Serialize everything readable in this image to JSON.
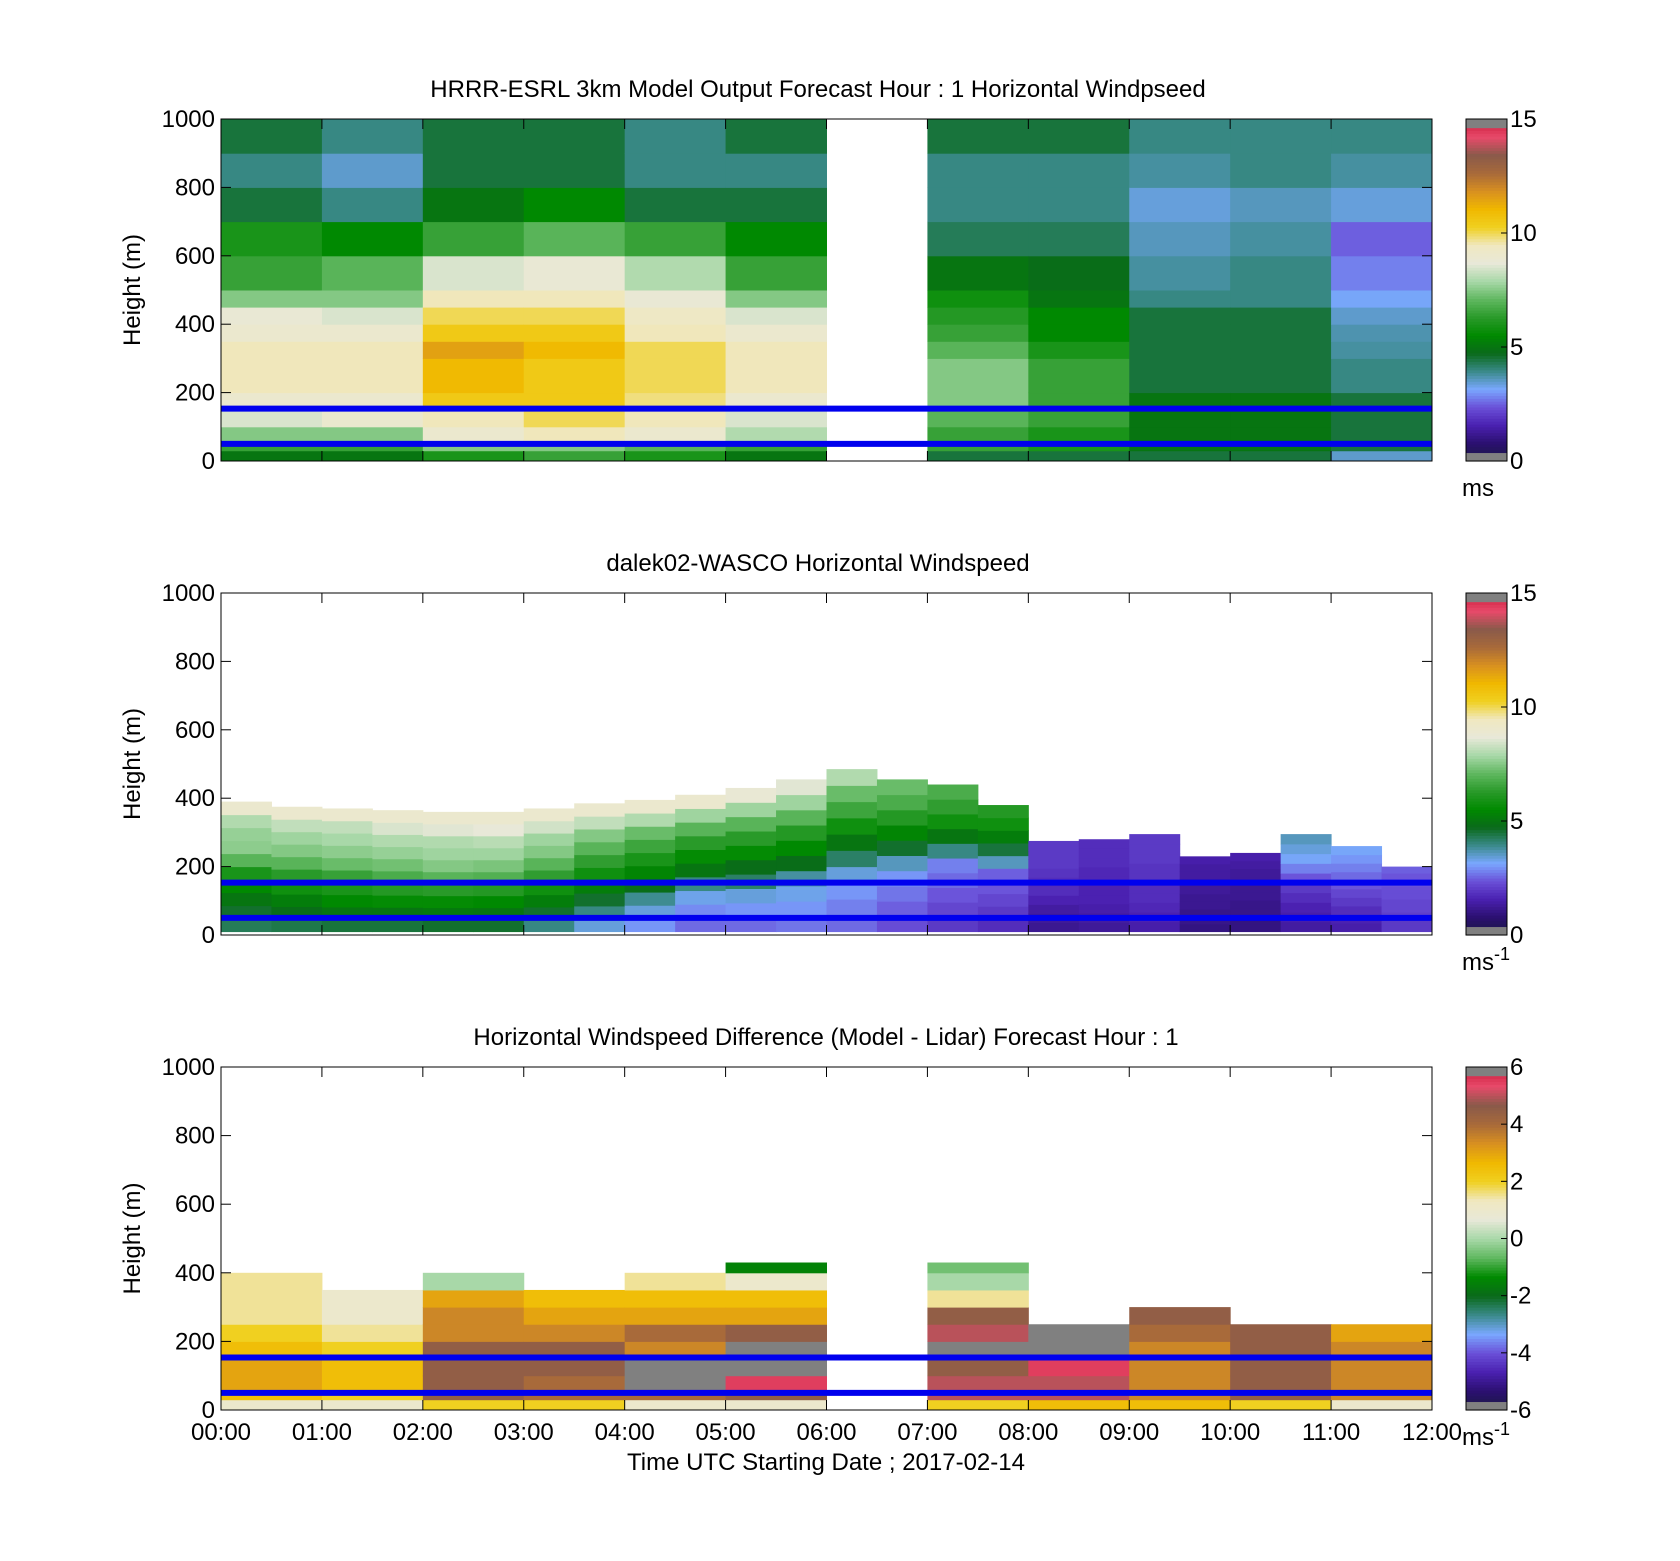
{
  "colors": {
    "speed_scale": [
      "#1a1a40",
      "#2b1070",
      "#4a20b0",
      "#6a50d8",
      "#7aa8ff",
      "#3a8a8a",
      "#0a6a1a",
      "#008a00",
      "#2a9a2a",
      "#60b860",
      "#a8d8a8",
      "#e8e8d8",
      "#f0e8c0",
      "#f0d020",
      "#f0b800",
      "#d89020",
      "#a86a3a",
      "#8a5a4a",
      "#e84a6a",
      "#c81838"
    ],
    "diff_scale": [
      "#1a1a40",
      "#2b1070",
      "#4a20b0",
      "#6a50d8",
      "#7aa8ff",
      "#3a8a8a",
      "#0a6a1a",
      "#008a00",
      "#60b860",
      "#a8d8a8",
      "#e8e8d8",
      "#f0e8c0",
      "#f0d020",
      "#f0b800",
      "#d89020",
      "#a86a3a",
      "#8a5a4a",
      "#e84a6a",
      "#c81838"
    ],
    "ref_line": "#0000ee",
    "out_of_range": "#808080",
    "missing": "#ffffff"
  },
  "chart_data": [
    {
      "type": "heatmap",
      "title": "HRRR-ESRL 3km Model Output   Forecast Hour : 1 Horizontal Windpseed",
      "xlabel": "",
      "ylabel": "Height (m)",
      "x_ticks": [
        "",
        "",
        "",
        "",
        "",
        "",
        "",
        "",
        "",
        "",
        "",
        "",
        ""
      ],
      "y_ticks": [
        "0",
        "200",
        "400",
        "600",
        "800",
        "1000"
      ],
      "y_tick_values": [
        0,
        200,
        400,
        600,
        800,
        1000
      ],
      "xlim": [
        0,
        12
      ],
      "ylim": [
        0,
        1000
      ],
      "colorbar": {
        "min": 0,
        "max": 15,
        "ticks": [
          "0",
          "5",
          "10",
          "15"
        ],
        "tick_values": [
          0,
          5,
          10,
          15
        ],
        "unit": "ms",
        "unit_sup": ""
      },
      "reference_lines_m": [
        50,
        153
      ],
      "x_hours": [
        0,
        1,
        2,
        3,
        4,
        5,
        6,
        7,
        8,
        9,
        10,
        11
      ],
      "y_bins_m": [
        [
          0,
          30
        ],
        [
          30,
          60
        ],
        [
          60,
          100
        ],
        [
          100,
          150
        ],
        [
          150,
          200
        ],
        [
          200,
          300
        ],
        [
          300,
          350
        ],
        [
          350,
          400
        ],
        [
          400,
          450
        ],
        [
          450,
          500
        ],
        [
          500,
          600
        ],
        [
          600,
          700
        ],
        [
          700,
          800
        ],
        [
          800,
          900
        ],
        [
          900,
          1000
        ]
      ],
      "values": [
        [
          5.0,
          6.5,
          7.5,
          8.5,
          9.0,
          9.5,
          9.5,
          9.0,
          8.8,
          7.5,
          6.5,
          6.0,
          4.5,
          4.0,
          4.5
        ],
        [
          5.0,
          6.5,
          7.5,
          9.0,
          9.0,
          9.5,
          9.5,
          9.0,
          8.5,
          7.5,
          7.0,
          5.5,
          4.0,
          3.5,
          4.0
        ],
        [
          6.0,
          7.5,
          9.0,
          9.5,
          10.5,
          11.0,
          11.5,
          10.5,
          10.0,
          9.5,
          8.5,
          6.5,
          5.0,
          4.5,
          4.5
        ],
        [
          6.5,
          7.5,
          9.5,
          10.0,
          10.5,
          10.5,
          11.0,
          10.5,
          10.0,
          9.5,
          8.8,
          7.0,
          5.5,
          4.5,
          4.5
        ],
        [
          6.0,
          7.0,
          9.0,
          9.5,
          9.8,
          10.0,
          10.0,
          9.5,
          9.3,
          8.8,
          8.0,
          6.5,
          4.5,
          4.0,
          4.0
        ],
        [
          5.0,
          6.5,
          8.0,
          8.5,
          9.0,
          9.5,
          9.5,
          9.0,
          8.5,
          7.5,
          6.5,
          5.5,
          4.5,
          4.0,
          4.5
        ],
        [
          null,
          null,
          null,
          null,
          null,
          null,
          null,
          null,
          null,
          null,
          null,
          null,
          null,
          null,
          null
        ],
        [
          4.5,
          6.5,
          6.5,
          7.0,
          7.5,
          7.5,
          7.0,
          6.5,
          6.2,
          5.8,
          5.0,
          4.3,
          4.0,
          4.0,
          4.5
        ],
        [
          4.5,
          6.0,
          6.0,
          6.5,
          6.5,
          6.5,
          6.0,
          5.5,
          5.5,
          5.0,
          4.8,
          4.3,
          4.0,
          4.0,
          4.5
        ],
        [
          4.5,
          5.0,
          5.0,
          5.0,
          5.0,
          4.5,
          4.5,
          4.5,
          4.5,
          4.0,
          3.8,
          3.6,
          3.4,
          3.8,
          4.0
        ],
        [
          4.5,
          5.0,
          5.0,
          5.0,
          5.0,
          4.5,
          4.5,
          4.5,
          4.5,
          4.0,
          4.0,
          3.8,
          3.6,
          4.0,
          4.0
        ],
        [
          3.5,
          4.5,
          4.5,
          4.5,
          4.5,
          4.0,
          3.8,
          3.7,
          3.5,
          3.2,
          2.8,
          2.5,
          3.4,
          3.8,
          4.0
        ]
      ]
    },
    {
      "type": "heatmap",
      "title": "dalek02-WASCO  Horizontal Windspeed",
      "xlabel": "",
      "ylabel": "Height (m)",
      "x_ticks": [
        "",
        "",
        "",
        "",
        "",
        "",
        "",
        "",
        "",
        "",
        "",
        "",
        ""
      ],
      "y_ticks": [
        "0",
        "200",
        "400",
        "600",
        "800",
        "1000"
      ],
      "y_tick_values": [
        0,
        200,
        400,
        600,
        800,
        1000
      ],
      "xlim": [
        0,
        12
      ],
      "ylim": [
        0,
        1000
      ],
      "colorbar": {
        "min": 0,
        "max": 15,
        "ticks": [
          "0",
          "5",
          "10",
          "15"
        ],
        "tick_values": [
          0,
          5,
          10,
          15
        ],
        "unit": "ms",
        "unit_sup": "-1"
      },
      "reference_lines_m": [
        50,
        153
      ],
      "lidar_profiles": [
        {
          "t": 0.0,
          "top": 390,
          "s": [
            4.3,
            4.6,
            5.0,
            5.5,
            6.0,
            7.0,
            7.6,
            7.7,
            8.0,
            9.0
          ]
        },
        {
          "t": 0.5,
          "top": 375,
          "s": [
            4.4,
            4.8,
            5.2,
            5.8,
            6.3,
            7.0,
            7.5,
            7.8,
            8.2,
            9.0
          ]
        },
        {
          "t": 1.0,
          "top": 370,
          "s": [
            4.5,
            5.0,
            5.5,
            6.0,
            6.5,
            7.2,
            7.6,
            7.9,
            8.2,
            9.0
          ]
        },
        {
          "t": 1.5,
          "top": 365,
          "s": [
            4.5,
            5.0,
            5.6,
            6.2,
            6.8,
            7.3,
            7.7,
            8.0,
            8.5,
            9.0
          ]
        },
        {
          "t": 2.0,
          "top": 360,
          "s": [
            4.6,
            5.1,
            5.6,
            6.3,
            7.0,
            7.5,
            7.8,
            8.0,
            8.6,
            9.0
          ]
        },
        {
          "t": 2.5,
          "top": 360,
          "s": [
            4.6,
            5.0,
            5.5,
            6.2,
            6.9,
            7.4,
            7.8,
            8.1,
            8.7,
            9.0
          ]
        },
        {
          "t": 3.0,
          "top": 370,
          "s": [
            4.0,
            4.6,
            5.2,
            5.8,
            6.4,
            7.0,
            7.5,
            7.8,
            8.4,
            9.0
          ]
        },
        {
          "t": 3.5,
          "top": 385,
          "s": [
            3.4,
            4.0,
            4.6,
            5.2,
            5.8,
            6.4,
            7.0,
            7.5,
            8.2,
            9.0
          ]
        },
        {
          "t": 4.0,
          "top": 395,
          "s": [
            3.0,
            3.4,
            3.9,
            4.8,
            5.4,
            6.0,
            6.6,
            7.2,
            8.0,
            9.0
          ]
        },
        {
          "t": 4.5,
          "top": 410,
          "s": [
            2.6,
            2.9,
            3.3,
            4.0,
            5.0,
            5.6,
            6.3,
            7.0,
            7.8,
            9.0
          ]
        },
        {
          "t": 5.0,
          "top": 430,
          "s": [
            2.6,
            3.0,
            3.4,
            4.2,
            4.8,
            5.6,
            6.3,
            7.0,
            7.8,
            8.8
          ]
        },
        {
          "t": 5.5,
          "top": 455,
          "s": [
            2.7,
            3.0,
            3.3,
            3.8,
            4.8,
            5.5,
            6.2,
            7.0,
            7.8,
            8.6
          ]
        },
        {
          "t": 6.0,
          "top": 485,
          "s": [
            2.6,
            2.8,
            3.0,
            3.4,
            4.2,
            5.0,
            5.8,
            6.6,
            7.2,
            8.0
          ]
        },
        {
          "t": 6.5,
          "top": 455,
          "s": [
            2.3,
            2.5,
            2.7,
            3.0,
            3.6,
            4.6,
            5.4,
            6.2,
            6.8,
            7.2
          ]
        },
        {
          "t": 7.0,
          "top": 440,
          "s": [
            2.0,
            2.2,
            2.4,
            2.6,
            2.8,
            4.0,
            5.0,
            5.8,
            6.4,
            6.8
          ]
        },
        {
          "t": 7.5,
          "top": 380,
          "s": [
            1.8,
            2.0,
            2.2,
            2.4,
            2.5,
            3.6,
            4.5,
            5.2,
            5.8,
            6.2
          ]
        },
        {
          "t": 8.0,
          "top": 275,
          "s": [
            1.2,
            1.3,
            1.4,
            1.6,
            1.8,
            1.8,
            1.9,
            2.0,
            2.0,
            2.0
          ]
        },
        {
          "t": 8.5,
          "top": 280,
          "s": [
            1.3,
            1.4,
            1.5,
            1.6,
            1.6,
            1.7,
            1.7,
            1.8,
            1.8,
            1.8
          ]
        },
        {
          "t": 9.0,
          "top": 295,
          "s": [
            1.5,
            1.6,
            1.7,
            1.8,
            1.8,
            1.9,
            1.9,
            2.0,
            2.0,
            2.0
          ]
        },
        {
          "t": 9.5,
          "top": 230,
          "s": [
            1.0,
            1.1,
            1.1,
            1.2,
            1.2,
            1.3,
            1.3,
            1.4,
            1.4,
            1.5
          ]
        },
        {
          "t": 10.0,
          "top": 240,
          "s": [
            1.0,
            1.0,
            1.1,
            1.1,
            1.2,
            1.2,
            1.3,
            1.3,
            1.4,
            1.5
          ]
        },
        {
          "t": 10.5,
          "top": 295,
          "s": [
            1.4,
            1.5,
            1.6,
            1.8,
            2.0,
            2.4,
            2.8,
            3.2,
            3.4,
            3.6
          ]
        },
        {
          "t": 11.0,
          "top": 260,
          "s": [
            1.5,
            1.6,
            1.8,
            2.0,
            2.2,
            2.4,
            2.6,
            2.8,
            3.0,
            3.2
          ]
        },
        {
          "t": 11.5,
          "top": 200,
          "s": [
            2.0,
            2.0,
            2.1,
            2.2,
            2.2,
            2.3,
            2.3,
            2.4,
            2.4,
            2.5
          ]
        }
      ]
    },
    {
      "type": "heatmap",
      "title": "Horizontal Windspeed Difference (Model - Lidar) Forecast Hour : 1",
      "xlabel": "Time UTC  Starting Date ; 2017-02-14",
      "ylabel": "Height (m)",
      "x_ticks": [
        "00:00",
        "01:00",
        "02:00",
        "03:00",
        "04:00",
        "05:00",
        "06:00",
        "07:00",
        "08:00",
        "09:00",
        "10:00",
        "11:00",
        "12:00"
      ],
      "y_ticks": [
        "0",
        "200",
        "400",
        "600",
        "800",
        "1000"
      ],
      "y_tick_values": [
        0,
        200,
        400,
        600,
        800,
        1000
      ],
      "xlim": [
        0,
        12
      ],
      "ylim": [
        0,
        1000
      ],
      "colorbar": {
        "min": -6,
        "max": 6,
        "ticks": [
          "-6",
          "-4",
          "-2",
          "0",
          "2",
          "4",
          "6"
        ],
        "tick_values": [
          -6,
          -4,
          -2,
          0,
          2,
          4,
          6
        ],
        "unit": "ms",
        "unit_sup": "-1"
      },
      "reference_lines_m": [
        50,
        153
      ],
      "x_hours": [
        0,
        1,
        2,
        3,
        4,
        5,
        6,
        7,
        8,
        9,
        10,
        11
      ],
      "y_bins_m": [
        [
          0,
          30
        ],
        [
          30,
          60
        ],
        [
          60,
          100
        ],
        [
          100,
          150
        ],
        [
          150,
          200
        ],
        [
          200,
          250
        ],
        [
          250,
          300
        ],
        [
          300,
          350
        ],
        [
          350,
          400
        ],
        [
          400,
          430
        ]
      ],
      "values": [
        [
          1.0,
          2.5,
          3.0,
          3.0,
          2.5,
          2.0,
          1.5,
          1.5,
          1.5,
          null
        ],
        [
          1.0,
          2.0,
          2.5,
          2.5,
          2.0,
          1.5,
          1.0,
          1.0,
          null,
          null
        ],
        [
          2.0,
          4.5,
          4.5,
          4.5,
          4.5,
          3.5,
          3.5,
          3.0,
          0.0,
          null
        ],
        [
          2.0,
          4.0,
          4.0,
          4.5,
          4.5,
          3.5,
          3.0,
          2.5,
          null,
          null
        ],
        [
          1.0,
          4.0,
          6.5,
          6.5,
          3.5,
          4.0,
          3.0,
          2.5,
          1.5,
          null
        ],
        [
          1.0,
          4.5,
          5.5,
          6.5,
          6.5,
          4.5,
          3.0,
          2.5,
          1.0,
          -1.5
        ],
        [
          null,
          null,
          null,
          null,
          null,
          null,
          null,
          null,
          null,
          null
        ],
        [
          2.0,
          5.0,
          5.0,
          4.5,
          6.5,
          5.0,
          4.5,
          1.5,
          0.0,
          -0.5
        ],
        [
          2.5,
          5.0,
          5.0,
          5.5,
          6.5,
          6.5,
          null,
          null,
          null,
          null
        ],
        [
          2.5,
          3.5,
          3.5,
          3.5,
          3.5,
          4.0,
          4.5,
          null,
          null,
          null
        ],
        [
          2.0,
          4.5,
          4.5,
          4.5,
          4.5,
          4.5,
          null,
          null,
          null,
          null
        ],
        [
          1.0,
          3.5,
          3.5,
          3.5,
          3.5,
          3.0,
          null,
          null,
          null,
          null
        ]
      ]
    }
  ]
}
